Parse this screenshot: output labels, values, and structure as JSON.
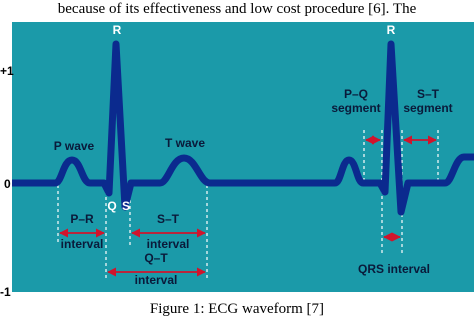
{
  "body_text": "because of its effectiveness and low cost procedure [6]. The",
  "figure": {
    "axis_labels": [
      "+1",
      "0",
      "-1"
    ],
    "labels": {
      "r_peak_1": "R",
      "r_peak_2": "R",
      "p_wave": "P wave",
      "t_wave": "T wave",
      "q": "Q",
      "s": "S",
      "pr_interval": [
        "P–R",
        "interval"
      ],
      "st_interval": [
        "S–T",
        "interval"
      ],
      "qt_interval": [
        "Q–T",
        "interval"
      ],
      "pq_segment": [
        "P–Q",
        "segment"
      ],
      "st_segment": [
        "S–T",
        "segment"
      ],
      "qrs_interval": "QRS interval"
    },
    "caption": "Figure 1: ECG waveform [7]"
  }
}
